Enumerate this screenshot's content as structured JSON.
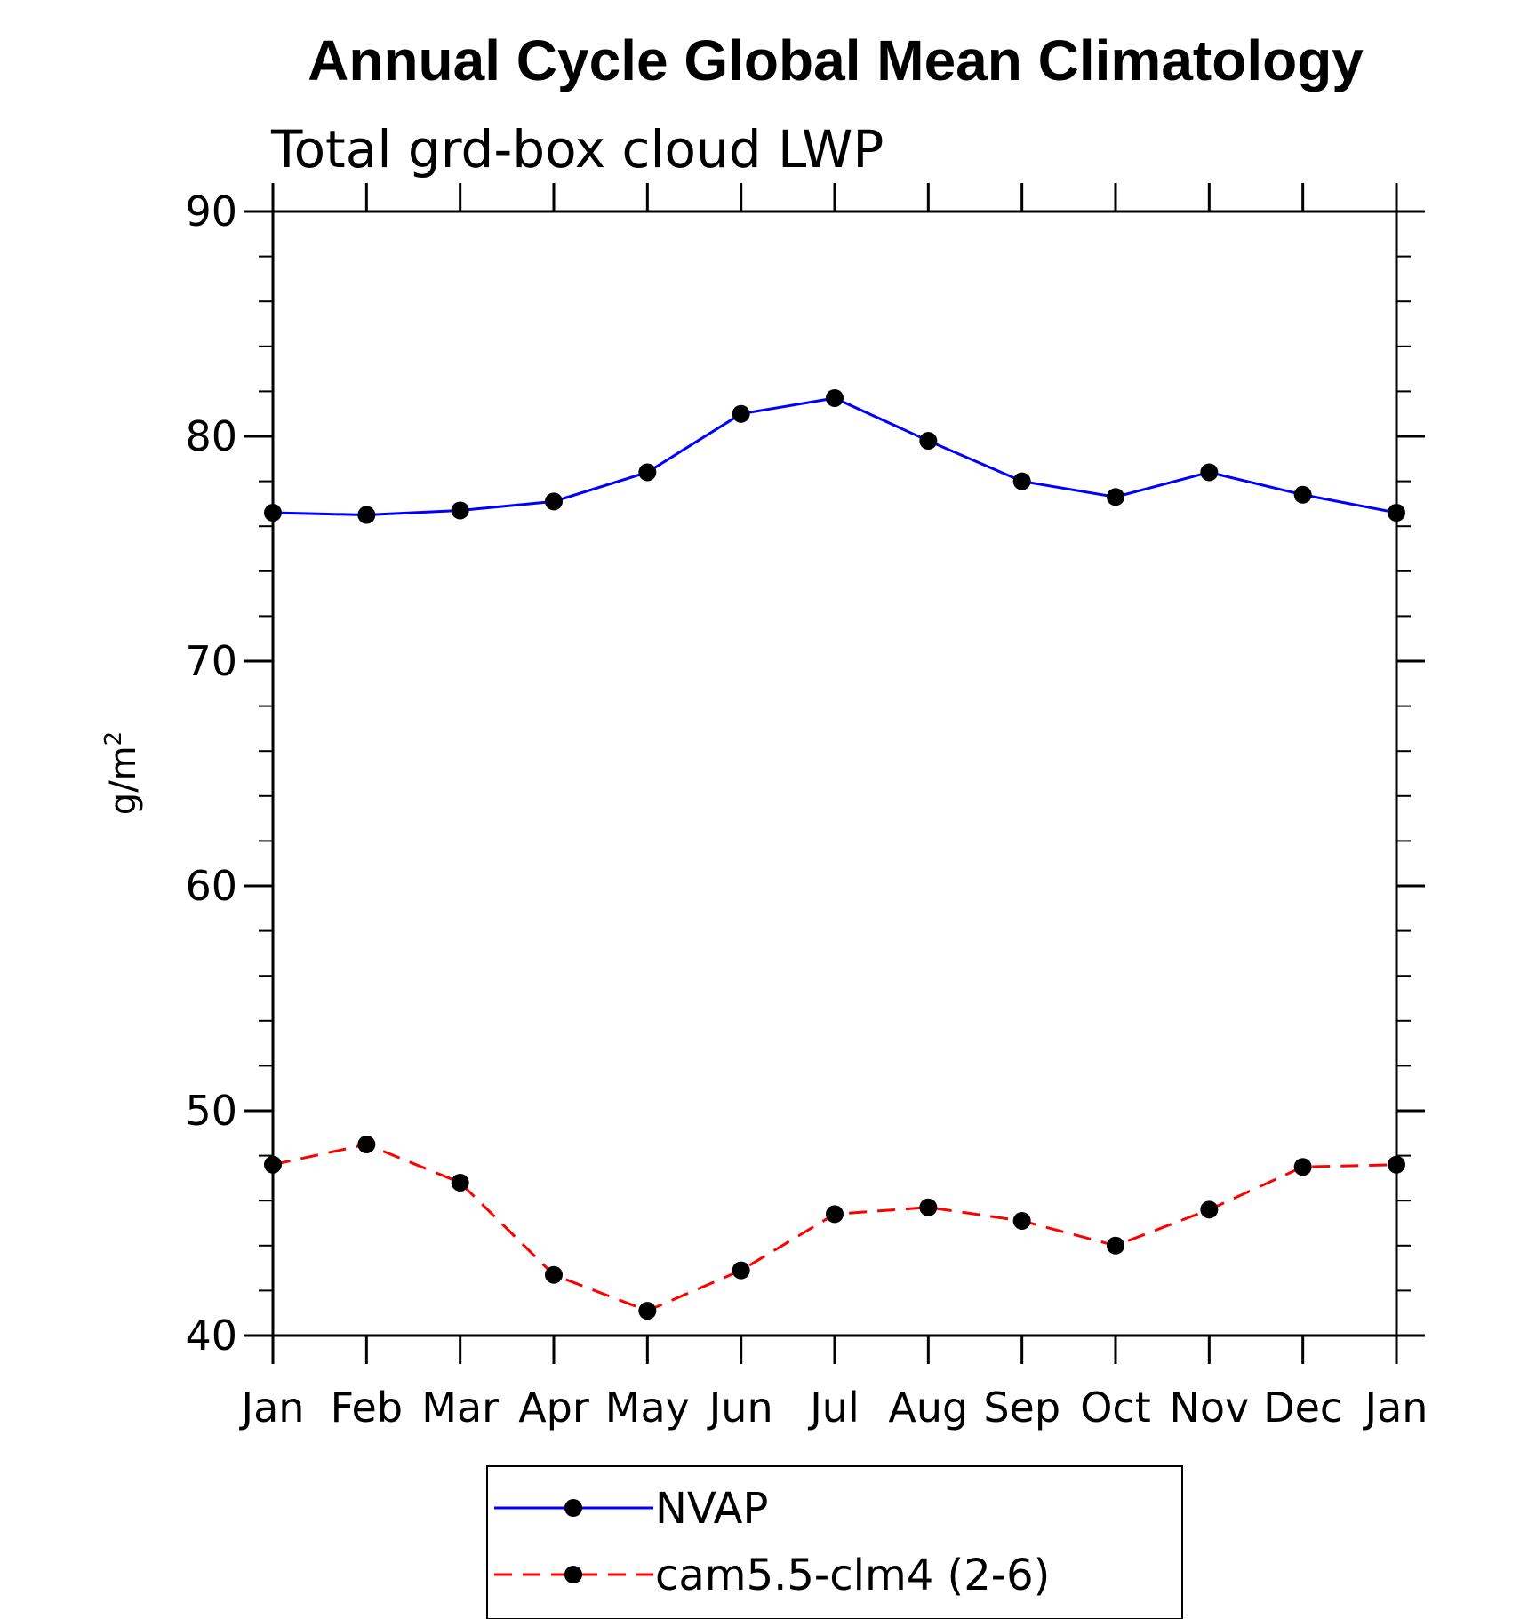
{
  "chart_data": {
    "type": "line",
    "title": "Annual Cycle Global Mean Climatology",
    "subtitle": "Total grd-box cloud LWP",
    "xlabel": "",
    "ylabel": "g/m",
    "ylabel_superscript": "2",
    "ylim": [
      40,
      90
    ],
    "yticks": [
      40,
      50,
      60,
      70,
      80,
      90
    ],
    "categories": [
      "Jan",
      "Feb",
      "Mar",
      "Apr",
      "May",
      "Jun",
      "Jul",
      "Aug",
      "Sep",
      "Oct",
      "Nov",
      "Dec",
      "Jan"
    ],
    "legend_position": "bottom-center",
    "series": [
      {
        "name": "NVAP",
        "color": "#0000ff",
        "dash": "solid",
        "values": [
          76.6,
          76.5,
          76.7,
          77.1,
          78.4,
          81.0,
          81.7,
          79.8,
          78.0,
          77.3,
          78.4,
          77.4,
          76.6
        ]
      },
      {
        "name": "cam5.5-clm4 (2-6)",
        "color": "#ff0000",
        "dash": "dashed",
        "values": [
          47.6,
          48.5,
          46.8,
          42.7,
          41.1,
          42.9,
          45.4,
          45.7,
          45.1,
          44.0,
          45.6,
          47.5,
          47.6
        ]
      }
    ]
  }
}
